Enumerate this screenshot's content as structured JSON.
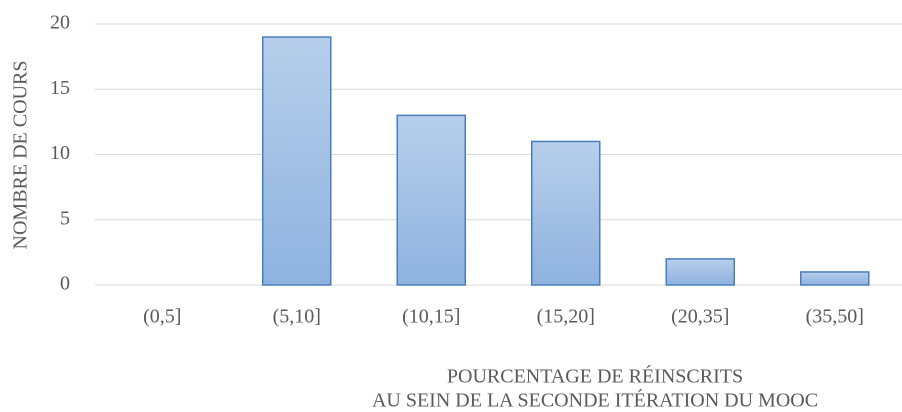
{
  "chart_data": {
    "type": "bar",
    "categories": [
      "(0,5]",
      "(5,10]",
      "(10,15]",
      "(15,20]",
      "(20,35]",
      "(35,50]"
    ],
    "values": [
      0,
      19,
      13,
      11,
      2,
      1
    ],
    "color": "#9dbde6",
    "ylim": [
      0,
      20
    ],
    "yticks": [
      0,
      5,
      10,
      15,
      20
    ],
    "grid": true,
    "ylabel": "NOMBRE DE COURS",
    "xlabel": [
      "POURCENTAGE DE RÉINSCRITS",
      "AU SEIN DE LA SECONDE ITÉRATION DU MOOC"
    ]
  }
}
